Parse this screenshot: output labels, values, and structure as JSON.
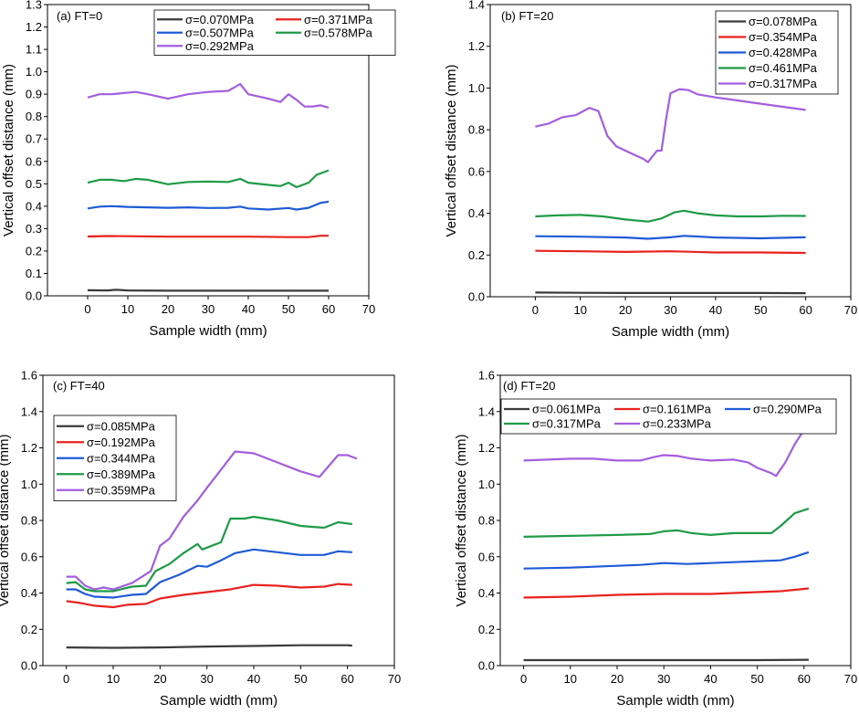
{
  "chart_data": [
    {
      "type": "line",
      "panel_label": "(a) FT=0",
      "xlabel": "Sample width (mm)",
      "ylabel": "Vertical offset distance (mm)",
      "xlim": [
        -10,
        70
      ],
      "ylim": [
        0,
        1.3
      ],
      "xticks": [
        0,
        10,
        20,
        30,
        40,
        50,
        60,
        70
      ],
      "xtick_labels": [
        "0",
        "10",
        "20",
        "30",
        "40",
        "50",
        "60",
        "70"
      ],
      "yticks": [
        0,
        0.1,
        0.2,
        0.3,
        0.4,
        0.5,
        0.6,
        0.7,
        0.8,
        0.9,
        1.0,
        1.1,
        1.2,
        1.3
      ],
      "ytick_labels": [
        "0.0",
        "0.1",
        "0.2",
        "0.3",
        "0.4",
        "0.5",
        "0.6",
        "0.7",
        "0.8",
        "0.9",
        "1.0",
        "1.1",
        "1.2",
        "1.3"
      ],
      "legend": {
        "placement": "top-right",
        "columns": 2
      },
      "series": [
        {
          "name": "σ=0.070MPa",
          "color": "#3a3a3a",
          "x": [
            0,
            5,
            7,
            10,
            20,
            30,
            40,
            50,
            60
          ],
          "y": [
            0.025,
            0.024,
            0.027,
            0.024,
            0.023,
            0.023,
            0.023,
            0.023,
            0.023
          ]
        },
        {
          "name": "σ=0.371MPa",
          "color": "#e8231f",
          "x": [
            0,
            5,
            10,
            20,
            30,
            40,
            50,
            55,
            58,
            60
          ],
          "y": [
            0.265,
            0.267,
            0.266,
            0.264,
            0.264,
            0.264,
            0.262,
            0.262,
            0.268,
            0.268
          ]
        },
        {
          "name": "σ=0.507MPa",
          "color": "#1f5bd6",
          "x": [
            0,
            3,
            6,
            10,
            15,
            20,
            25,
            30,
            35,
            38,
            40,
            45,
            50,
            52,
            55,
            58,
            60
          ],
          "y": [
            0.39,
            0.398,
            0.4,
            0.397,
            0.395,
            0.393,
            0.395,
            0.392,
            0.393,
            0.398,
            0.39,
            0.385,
            0.392,
            0.385,
            0.393,
            0.415,
            0.42
          ]
        },
        {
          "name": "σ=0.578MPa",
          "color": "#1f9a46",
          "x": [
            0,
            3,
            6,
            9,
            12,
            15,
            20,
            25,
            30,
            35,
            38,
            40,
            45,
            48,
            50,
            52,
            55,
            57,
            60
          ],
          "y": [
            0.505,
            0.518,
            0.518,
            0.512,
            0.522,
            0.518,
            0.498,
            0.508,
            0.51,
            0.508,
            0.522,
            0.505,
            0.495,
            0.49,
            0.505,
            0.485,
            0.505,
            0.54,
            0.56
          ]
        },
        {
          "name": "σ=0.292MPa",
          "color": "#a35ee0",
          "x": [
            0,
            3,
            6,
            9,
            12,
            15,
            20,
            25,
            30,
            35,
            38,
            40,
            45,
            48,
            50,
            52,
            54,
            56,
            58,
            60
          ],
          "y": [
            0.885,
            0.9,
            0.9,
            0.905,
            0.91,
            0.9,
            0.88,
            0.9,
            0.91,
            0.915,
            0.945,
            0.9,
            0.88,
            0.865,
            0.9,
            0.875,
            0.845,
            0.845,
            0.85,
            0.84
          ]
        }
      ]
    },
    {
      "type": "line",
      "panel_label": "(b) FT=20",
      "xlabel": "Sample width (mm)",
      "ylabel": "Vertical offset distance (mm)",
      "xlim": [
        -10,
        70
      ],
      "ylim": [
        0,
        1.4
      ],
      "xticks": [
        0,
        10,
        20,
        30,
        40,
        50,
        60,
        70
      ],
      "xtick_labels": [
        "0",
        "10",
        "20",
        "30",
        "40",
        "50",
        "60",
        "70"
      ],
      "yticks": [
        0,
        0.2,
        0.4,
        0.6,
        0.8,
        1.0,
        1.2,
        1.4
      ],
      "ytick_labels": [
        "0.0",
        "0.2",
        "0.4",
        "0.6",
        "0.8",
        "1.0",
        "1.2",
        "1.4"
      ],
      "legend": {
        "placement": "top-right",
        "columns": 1
      },
      "series": [
        {
          "name": "σ=0.078MPa",
          "color": "#3a3a3a",
          "x": [
            0,
            10,
            20,
            30,
            40,
            50,
            60
          ],
          "y": [
            0.02,
            0.019,
            0.018,
            0.018,
            0.018,
            0.018,
            0.017
          ]
        },
        {
          "name": "σ=0.354MPa",
          "color": "#e8231f",
          "x": [
            0,
            10,
            20,
            30,
            40,
            50,
            60
          ],
          "y": [
            0.22,
            0.218,
            0.215,
            0.218,
            0.212,
            0.212,
            0.21
          ]
        },
        {
          "name": "σ=0.428MPa",
          "color": "#1f5bd6",
          "x": [
            0,
            10,
            20,
            25,
            30,
            33,
            40,
            50,
            60
          ],
          "y": [
            0.29,
            0.288,
            0.284,
            0.278,
            0.285,
            0.292,
            0.284,
            0.28,
            0.285
          ]
        },
        {
          "name": "σ=0.461MPa",
          "color": "#1f9a46",
          "x": [
            0,
            5,
            10,
            15,
            20,
            25,
            28,
            31,
            33,
            36,
            40,
            45,
            50,
            55,
            60
          ],
          "y": [
            0.385,
            0.39,
            0.392,
            0.385,
            0.37,
            0.36,
            0.375,
            0.405,
            0.412,
            0.4,
            0.39,
            0.385,
            0.385,
            0.388,
            0.387
          ]
        },
        {
          "name": "σ=0.317MPa",
          "color": "#a35ee0",
          "x": [
            0,
            3,
            6,
            9,
            12,
            14,
            16,
            18,
            20,
            22,
            24,
            25,
            27,
            28,
            29,
            30,
            32,
            34,
            36,
            40,
            45,
            50,
            55,
            60
          ],
          "y": [
            0.815,
            0.83,
            0.86,
            0.87,
            0.905,
            0.89,
            0.77,
            0.72,
            0.7,
            0.68,
            0.66,
            0.645,
            0.7,
            0.7,
            0.85,
            0.975,
            0.995,
            0.99,
            0.97,
            0.955,
            0.94,
            0.925,
            0.91,
            0.895
          ]
        }
      ]
    },
    {
      "type": "line",
      "panel_label": "(c) FT=40",
      "xlabel": "Sample width (mm)",
      "ylabel": "Vertical offset distance (mm)",
      "xlim": [
        -5,
        70
      ],
      "ylim": [
        0,
        1.6
      ],
      "xticks": [
        0,
        10,
        20,
        30,
        40,
        50,
        60,
        70
      ],
      "xtick_labels": [
        "0",
        "10",
        "20",
        "30",
        "40",
        "50",
        "60",
        "70"
      ],
      "yticks": [
        0,
        0.2,
        0.4,
        0.6,
        0.8,
        1.0,
        1.2,
        1.4,
        1.6
      ],
      "ytick_labels": [
        "0.0",
        "0.2",
        "0.4",
        "0.6",
        "0.8",
        "1.0",
        "1.2",
        "1.4",
        "1.6"
      ],
      "legend": {
        "placement": "top-left",
        "columns": 1
      },
      "series": [
        {
          "name": "σ=0.085MPa",
          "color": "#3a3a3a",
          "x": [
            0,
            10,
            20,
            30,
            40,
            50,
            60,
            61
          ],
          "y": [
            0.1,
            0.098,
            0.1,
            0.105,
            0.108,
            0.112,
            0.112,
            0.11
          ]
        },
        {
          "name": "σ=0.192MPa",
          "color": "#e8231f",
          "x": [
            0,
            3,
            6,
            10,
            13,
            17,
            20,
            25,
            30,
            35,
            40,
            45,
            50,
            55,
            58,
            61
          ],
          "y": [
            0.355,
            0.345,
            0.33,
            0.322,
            0.335,
            0.34,
            0.37,
            0.39,
            0.405,
            0.42,
            0.445,
            0.44,
            0.43,
            0.435,
            0.45,
            0.445
          ]
        },
        {
          "name": "σ=0.344MPa",
          "color": "#1f5bd6",
          "x": [
            0,
            2,
            4,
            6,
            10,
            14,
            17,
            20,
            24,
            28,
            30,
            33,
            36,
            40,
            45,
            50,
            55,
            58,
            61
          ],
          "y": [
            0.42,
            0.42,
            0.395,
            0.38,
            0.375,
            0.39,
            0.395,
            0.46,
            0.5,
            0.55,
            0.545,
            0.58,
            0.62,
            0.64,
            0.625,
            0.61,
            0.61,
            0.63,
            0.625
          ]
        },
        {
          "name": "σ=0.389MPa",
          "color": "#1f9a46",
          "x": [
            0,
            2,
            4,
            6,
            10,
            14,
            17,
            19,
            22,
            25,
            28,
            29,
            31,
            33,
            35,
            38,
            40,
            45,
            50,
            55,
            58,
            61
          ],
          "y": [
            0.455,
            0.46,
            0.42,
            0.41,
            0.41,
            0.435,
            0.44,
            0.52,
            0.56,
            0.62,
            0.67,
            0.64,
            0.66,
            0.68,
            0.81,
            0.81,
            0.82,
            0.8,
            0.77,
            0.76,
            0.79,
            0.78
          ]
        },
        {
          "name": "σ=0.359MPa",
          "color": "#a35ee0",
          "x": [
            0,
            2,
            4,
            6,
            8,
            10,
            14,
            18,
            20,
            22,
            25,
            28,
            30,
            33,
            36,
            40,
            45,
            50,
            54,
            56,
            58,
            60,
            62
          ],
          "y": [
            0.49,
            0.49,
            0.44,
            0.42,
            0.43,
            0.42,
            0.455,
            0.52,
            0.66,
            0.7,
            0.82,
            0.91,
            0.98,
            1.08,
            1.18,
            1.17,
            1.12,
            1.07,
            1.04,
            1.1,
            1.16,
            1.16,
            1.14
          ]
        }
      ]
    },
    {
      "type": "line",
      "panel_label": "(d) FT=20",
      "xlabel": "Sample width (mm)",
      "ylabel": "Vertical offset distance (mm)",
      "xlim": [
        -5,
        70
      ],
      "ylim": [
        0,
        1.6
      ],
      "xticks": [
        0,
        10,
        20,
        30,
        40,
        50,
        60,
        70
      ],
      "xtick_labels": [
        "0",
        "10",
        "20",
        "30",
        "40",
        "50",
        "60",
        "70"
      ],
      "yticks": [
        0,
        0.2,
        0.4,
        0.6,
        0.8,
        1.0,
        1.2,
        1.4,
        1.6
      ],
      "ytick_labels": [
        "0.0",
        "0.2",
        "0.4",
        "0.6",
        "0.8",
        "1.0",
        "1.2",
        "1.4",
        "1.6"
      ],
      "legend": {
        "placement": "top-right",
        "columns": 3
      },
      "series": [
        {
          "name": "σ=0.061MPa",
          "color": "#3a3a3a",
          "x": [
            0,
            10,
            20,
            30,
            40,
            50,
            61
          ],
          "y": [
            0.03,
            0.03,
            0.03,
            0.03,
            0.03,
            0.03,
            0.032
          ]
        },
        {
          "name": "σ=0.161MPa",
          "color": "#e8231f",
          "x": [
            0,
            10,
            20,
            30,
            40,
            50,
            55,
            61
          ],
          "y": [
            0.375,
            0.38,
            0.39,
            0.395,
            0.395,
            0.405,
            0.41,
            0.425
          ]
        },
        {
          "name": "σ=0.290MPa",
          "color": "#1f5bd6",
          "x": [
            0,
            10,
            20,
            25,
            30,
            35,
            40,
            45,
            50,
            55,
            58,
            61
          ],
          "y": [
            0.535,
            0.54,
            0.55,
            0.555,
            0.565,
            0.56,
            0.565,
            0.57,
            0.575,
            0.58,
            0.6,
            0.625
          ]
        },
        {
          "name": "σ=0.317MPa",
          "color": "#1f9a46",
          "x": [
            0,
            10,
            20,
            27,
            30,
            33,
            36,
            40,
            45,
            50,
            53,
            55,
            58,
            61
          ],
          "y": [
            0.71,
            0.715,
            0.72,
            0.725,
            0.74,
            0.745,
            0.73,
            0.72,
            0.73,
            0.73,
            0.73,
            0.77,
            0.84,
            0.865
          ]
        },
        {
          "name": "σ=0.233MPa",
          "color": "#a35ee0",
          "x": [
            0,
            5,
            10,
            15,
            20,
            25,
            28,
            30,
            33,
            36,
            40,
            45,
            48,
            50,
            53,
            54,
            56,
            58,
            60,
            61
          ],
          "y": [
            1.13,
            1.135,
            1.14,
            1.14,
            1.13,
            1.13,
            1.15,
            1.16,
            1.155,
            1.14,
            1.13,
            1.135,
            1.12,
            1.09,
            1.06,
            1.045,
            1.12,
            1.22,
            1.3,
            1.28
          ]
        }
      ]
    }
  ]
}
